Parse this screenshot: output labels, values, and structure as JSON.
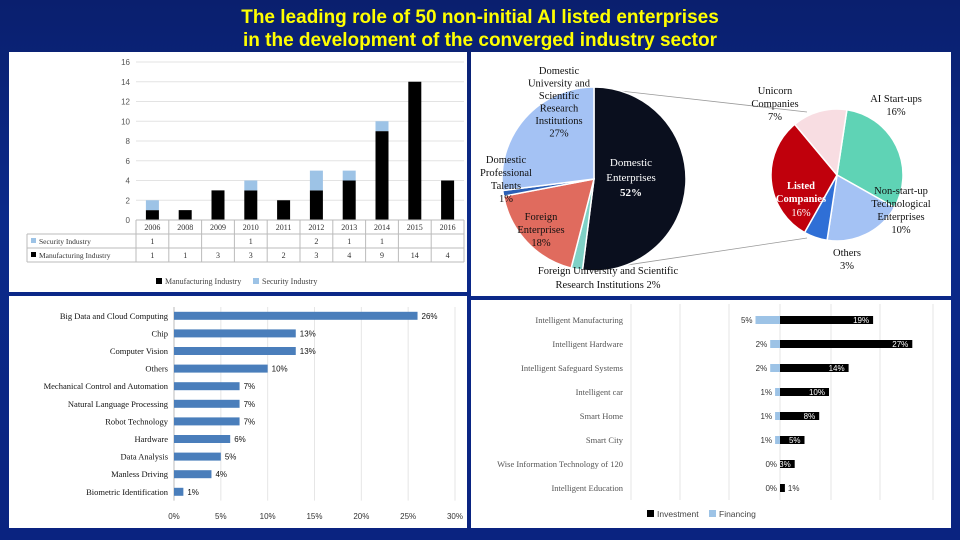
{
  "title_lines": [
    "The leading role of 50 non-initial AI  listed enterprises",
    "in the development of the converged industry sector"
  ],
  "colors": {
    "manufacturing": "#000000",
    "security": "#9dc3e6",
    "bar_blue": "#4a7ebb",
    "investment": "#000000",
    "financing": "#9dc3e6"
  },
  "chart_data": [
    {
      "type": "bar",
      "stacked": true,
      "categories": [
        "2006",
        "2008",
        "2009",
        "2010",
        "2011",
        "2012",
        "2013",
        "2014",
        "2015",
        "2016"
      ],
      "series": [
        {
          "name": "Manufacturing Industry",
          "values": [
            1,
            1,
            3,
            3,
            2,
            3,
            4,
            9,
            14,
            4
          ]
        },
        {
          "name": "Security Industry",
          "values": [
            1,
            null,
            null,
            1,
            null,
            2,
            1,
            1,
            null,
            null
          ]
        }
      ],
      "ylim": [
        0,
        16
      ],
      "yticks": [
        "0",
        "2",
        "4",
        "6",
        "8",
        "10",
        "12",
        "14",
        "16"
      ],
      "table_rows": [
        {
          "label": "Security Industry",
          "cells": [
            "1",
            "",
            "",
            "1",
            "",
            "2",
            "1",
            "1",
            "",
            ""
          ]
        },
        {
          "label": "Manufacturing Industry",
          "cells": [
            "1",
            "1",
            "3",
            "3",
            "2",
            "3",
            "4",
            "9",
            "14",
            "4"
          ]
        }
      ],
      "legend": [
        "Manufacturing Industry",
        "Security Industry"
      ],
      "legend_position": "bottom"
    },
    {
      "type": "pie",
      "slices": [
        {
          "label": "Domestic Enterprises",
          "value": 52,
          "pct": "52%",
          "color": "#0a0f1e"
        },
        {
          "label": "Foreign University and Scientific Research Institutions 2%",
          "value": 2,
          "pct": "",
          "color": "#7fd1c6"
        },
        {
          "label": "Foreign Enterprises",
          "value": 18,
          "pct": "18%",
          "color": "#e06b5e"
        },
        {
          "label": "Domestic Professional Talents",
          "value": 1,
          "pct": "1%",
          "color": "#2b5fb5"
        },
        {
          "label": "Domestic University and Scientific Research Institutions",
          "value": 27,
          "pct": "27%",
          "color": "#a4c2f4"
        }
      ],
      "labels": {
        "domestic_enterprises": [
          "Domestic",
          "Enterprises",
          "52%"
        ],
        "foreign_enterprises": [
          "Foreign",
          "Enterprises",
          "18%"
        ],
        "domestic_university": [
          "Domestic",
          "University and",
          "Scientific",
          "Research",
          "Institutions",
          "27%"
        ],
        "domestic_talents": [
          "Domestic",
          "Professional",
          "Talents",
          "1%"
        ],
        "foreign_university": [
          "Foreign University and Scientific",
          "Research Institutions 2%"
        ]
      }
    },
    {
      "type": "pie",
      "slices": [
        {
          "label": "AI Start-ups",
          "value": 16,
          "color": "#5fd3b5"
        },
        {
          "label": "Non-start-up Technological Enterprises",
          "value": 10,
          "color": "#a4c2f4"
        },
        {
          "label": "Others",
          "value": 3,
          "color": "#2f6fd6"
        },
        {
          "label": "Listed Companies",
          "value": 16,
          "color": "#c0000c"
        },
        {
          "label": "Unicorn Companies",
          "value": 7,
          "color": "#f8dde2"
        }
      ],
      "labels": {
        "unicorn": [
          "Unicorn",
          "Companies",
          "7%"
        ],
        "ai_startups": [
          "AI Start-ups",
          "16%"
        ],
        "non_startup": [
          "Non-start-up",
          "Technological",
          "Enterprises",
          "10%"
        ],
        "others": [
          "Others",
          "3%"
        ],
        "listed": [
          "Listed",
          "Companies",
          "16%"
        ]
      }
    },
    {
      "type": "bar",
      "orientation": "horizontal",
      "categories": [
        "Big Data and Cloud Computing",
        "Chip",
        "Computer Vision",
        "Others",
        "Mechanical Control and Automation",
        "Natural Language Processing",
        "Robot Technology",
        "Hardware",
        "Data Analysis",
        "Manless Driving",
        "Biometric Identification"
      ],
      "values": [
        26,
        13,
        13,
        10,
        7,
        7,
        7,
        6,
        5,
        4,
        1
      ],
      "value_labels": [
        "26%",
        "13%",
        "13%",
        "10%",
        "7%",
        "7%",
        "7%",
        "6%",
        "5%",
        "4%",
        "1%"
      ],
      "xlim": [
        0,
        30
      ],
      "xticks": [
        "0%",
        "5%",
        "10%",
        "15%",
        "20%",
        "25%",
        "30%"
      ]
    },
    {
      "type": "bar",
      "orientation": "horizontal",
      "stacked": true,
      "categories": [
        "Intelligent Manufacturing",
        "Intelligent Hardware",
        "Intelligent Safeguard Systems",
        "Intelligent car",
        "Smart Home",
        "Smart City",
        "Wise Information Technology of 120",
        "Intelligent  Education"
      ],
      "series": [
        {
          "name": "Financing",
          "values": [
            5,
            2,
            2,
            1,
            1,
            1,
            0,
            0
          ],
          "labels": [
            "5%",
            "2%",
            "2%",
            "1%",
            "1%",
            "1%",
            "0%",
            "0%"
          ]
        },
        {
          "name": "Investment",
          "values": [
            19,
            27,
            14,
            10,
            8,
            5,
            3,
            1
          ],
          "labels": [
            "19%",
            "27%",
            "14%",
            "10%",
            "8%",
            "5%",
            "3%",
            "1%"
          ]
        }
      ],
      "legend": [
        "Investment",
        "Financing"
      ],
      "legend_position": "bottom"
    }
  ]
}
